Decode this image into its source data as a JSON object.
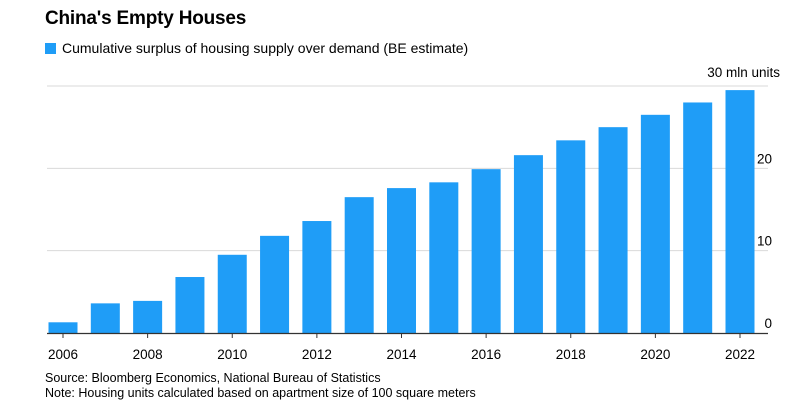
{
  "chart_data": {
    "type": "bar",
    "title": "China's Empty Houses",
    "legend": "Cumulative surplus of housing supply over demand (BE estimate)",
    "series_color": "#1f9df7",
    "y_unit_label": "30 mln units",
    "x": [
      2006,
      2007,
      2008,
      2009,
      2010,
      2011,
      2012,
      2013,
      2014,
      2015,
      2016,
      2017,
      2018,
      2019,
      2020,
      2021,
      2022
    ],
    "values": [
      1.3,
      3.6,
      3.9,
      6.8,
      9.5,
      11.8,
      13.6,
      16.5,
      17.6,
      18.3,
      19.9,
      21.6,
      23.4,
      25.0,
      26.5,
      28.0,
      29.5
    ],
    "ylim": [
      0,
      30
    ],
    "y_ticks": [
      0,
      10,
      20
    ],
    "x_ticks": [
      2006,
      2008,
      2010,
      2012,
      2014,
      2016,
      2018,
      2020,
      2022
    ],
    "grid": true
  },
  "footer": {
    "source": "Source: Bloomberg Economics, National Bureau of Statistics",
    "note": "Note: Housing units calculated based on apartment size of 100 square meters"
  }
}
